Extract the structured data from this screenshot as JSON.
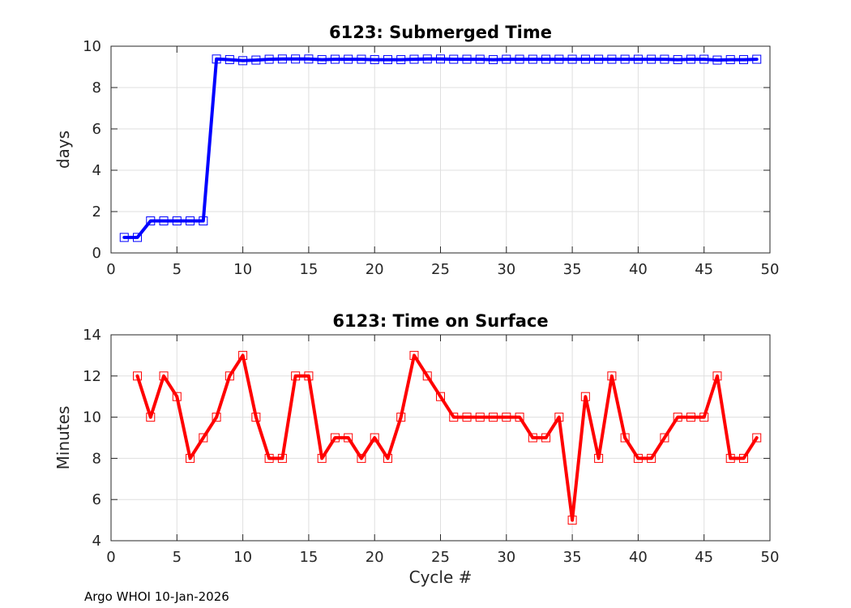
{
  "footer": "Argo WHOI 10-Jan-2026",
  "chart_data": [
    {
      "type": "line",
      "title": "6123: Submerged Time",
      "xlabel": "",
      "ylabel": "days",
      "xlim": [
        0,
        50
      ],
      "ylim": [
        0,
        10
      ],
      "xticks": [
        0,
        5,
        10,
        15,
        20,
        25,
        30,
        35,
        40,
        45,
        50
      ],
      "yticks": [
        0,
        2,
        4,
        6,
        8,
        10
      ],
      "grid": true,
      "color": "#0000ff",
      "marker": "square",
      "x": [
        1,
        2,
        3,
        4,
        5,
        6,
        7,
        8,
        9,
        10,
        11,
        12,
        13,
        14,
        15,
        16,
        17,
        18,
        19,
        20,
        21,
        22,
        23,
        24,
        25,
        26,
        27,
        28,
        29,
        30,
        31,
        32,
        33,
        34,
        35,
        36,
        37,
        38,
        39,
        40,
        41,
        42,
        43,
        44,
        45,
        46,
        47,
        48,
        49
      ],
      "values": [
        0.75,
        0.75,
        1.55,
        1.55,
        1.55,
        1.55,
        1.55,
        9.38,
        9.35,
        9.3,
        9.33,
        9.37,
        9.38,
        9.38,
        9.38,
        9.35,
        9.37,
        9.37,
        9.37,
        9.35,
        9.35,
        9.35,
        9.37,
        9.38,
        9.38,
        9.37,
        9.37,
        9.37,
        9.35,
        9.37,
        9.37,
        9.37,
        9.37,
        9.37,
        9.37,
        9.37,
        9.37,
        9.37,
        9.37,
        9.37,
        9.37,
        9.37,
        9.35,
        9.37,
        9.37,
        9.33,
        9.35,
        9.35,
        9.37
      ]
    },
    {
      "type": "line",
      "title": "6123: Time on Surface",
      "xlabel": "Cycle #",
      "ylabel": "Minutes",
      "xlim": [
        0,
        50
      ],
      "ylim": [
        4,
        14
      ],
      "xticks": [
        0,
        5,
        10,
        15,
        20,
        25,
        30,
        35,
        40,
        45,
        50
      ],
      "yticks": [
        4,
        6,
        8,
        10,
        12,
        14
      ],
      "grid": true,
      "color": "#ff0000",
      "marker": "square",
      "x": [
        2,
        3,
        4,
        5,
        6,
        7,
        8,
        9,
        10,
        11,
        12,
        13,
        14,
        15,
        16,
        17,
        18,
        19,
        20,
        21,
        22,
        23,
        24,
        25,
        26,
        27,
        28,
        29,
        30,
        31,
        32,
        33,
        34,
        35,
        36,
        37,
        38,
        39,
        40,
        41,
        42,
        43,
        44,
        45,
        46,
        47,
        48,
        49
      ],
      "values": [
        12,
        10,
        12,
        11,
        8,
        9,
        10,
        12,
        13,
        10,
        8,
        8,
        12,
        12,
        8,
        9,
        9,
        8,
        9,
        8,
        10,
        13,
        12,
        11,
        10,
        10,
        10,
        10,
        10,
        10,
        9,
        9,
        10,
        5,
        11,
        8,
        12,
        9,
        8,
        8,
        9,
        10,
        10,
        10,
        12,
        8,
        8,
        9
      ]
    }
  ]
}
